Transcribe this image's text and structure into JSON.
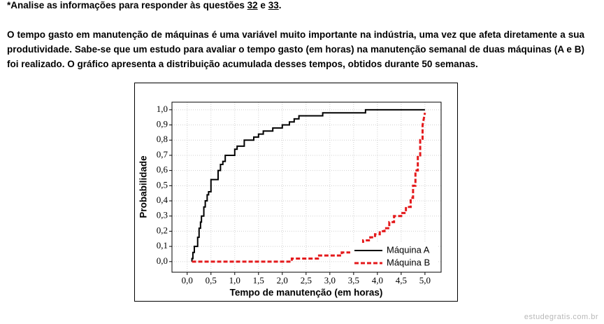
{
  "header": {
    "prefix": "*Analise as informações para responder às questões ",
    "first_question": "32",
    "joiner": " e ",
    "second_question": "33",
    "suffix": "."
  },
  "paragraph": "O tempo gasto em manutenção de máquinas é uma variável muito importante na indústria, uma vez que afeta diretamente a sua produtividade. Sabe-se que um estudo para avaliar o tempo gasto (em horas) na manutenção semanal de duas máquinas (A e B) foi realizado. O gráfico apresenta a distribuição acumulada desses tempos, obtidos durante 50 semanas.",
  "chart_data": {
    "type": "line",
    "x_label": "Tempo de manutenção (em horas)",
    "y_label": "Probabilidade",
    "xlim": [
      -0.32,
      5.34
    ],
    "ylim": [
      -0.07,
      1.05
    ],
    "xticks": [
      {
        "value": 0,
        "label": "0,0"
      },
      {
        "value": 0.5,
        "label": "0,5"
      },
      {
        "value": 1,
        "label": "1,0"
      },
      {
        "value": 1.5,
        "label": "1,5"
      },
      {
        "value": 2,
        "label": "2,0"
      },
      {
        "value": 2.5,
        "label": "2,5"
      },
      {
        "value": 3,
        "label": "3,0"
      },
      {
        "value": 3.5,
        "label": "3,5"
      },
      {
        "value": 4,
        "label": "4,0"
      },
      {
        "value": 4.5,
        "label": "4,5"
      },
      {
        "value": 5,
        "label": "5,0"
      }
    ],
    "yticks": [
      {
        "value": 0,
        "label": "0,0"
      },
      {
        "value": 0.1,
        "label": "0,1"
      },
      {
        "value": 0.2,
        "label": "0,2"
      },
      {
        "value": 0.3,
        "label": "0,3"
      },
      {
        "value": 0.4,
        "label": "0,4"
      },
      {
        "value": 0.5,
        "label": "0,5"
      },
      {
        "value": 0.6,
        "label": "0,6"
      },
      {
        "value": 0.7,
        "label": "0,7"
      },
      {
        "value": 0.8,
        "label": "0,8"
      },
      {
        "value": 0.9,
        "label": "0,9"
      },
      {
        "value": 1,
        "label": "1,0"
      }
    ],
    "grid": true,
    "legend": "lower right",
    "series": [
      {
        "name": "Máquina A",
        "color": "#000000",
        "style": "solid",
        "x": [
          0.1,
          0.1,
          0.12,
          0.12,
          0.15,
          0.15,
          0.22,
          0.22,
          0.25,
          0.25,
          0.28,
          0.28,
          0.3,
          0.3,
          0.35,
          0.35,
          0.38,
          0.38,
          0.42,
          0.42,
          0.45,
          0.45,
          0.5,
          0.5,
          0.65,
          0.65,
          0.7,
          0.7,
          0.75,
          0.75,
          0.8,
          0.8,
          1.0,
          1.0,
          1.05,
          1.05,
          1.2,
          1.2,
          1.4,
          1.4,
          1.5,
          1.5,
          1.6,
          1.6,
          1.8,
          1.8,
          2.0,
          2.0,
          2.15,
          2.15,
          2.25,
          2.25,
          2.35,
          2.35,
          2.85,
          2.85,
          3.75,
          3.75,
          5.0
        ],
        "values": [
          0,
          0.02,
          0.02,
          0.06,
          0.06,
          0.1,
          0.1,
          0.16,
          0.16,
          0.22,
          0.22,
          0.26,
          0.26,
          0.3,
          0.3,
          0.36,
          0.36,
          0.4,
          0.4,
          0.44,
          0.44,
          0.46,
          0.46,
          0.54,
          0.54,
          0.6,
          0.6,
          0.64,
          0.64,
          0.66,
          0.66,
          0.7,
          0.7,
          0.74,
          0.74,
          0.76,
          0.76,
          0.8,
          0.8,
          0.82,
          0.82,
          0.84,
          0.84,
          0.86,
          0.86,
          0.88,
          0.88,
          0.9,
          0.9,
          0.92,
          0.92,
          0.94,
          0.94,
          0.96,
          0.96,
          0.98,
          0.98,
          1.0,
          1.0
        ]
      },
      {
        "name": "Máquina B",
        "color": "#e41a1c",
        "style": "dashed",
        "x": [
          0.1,
          2.2,
          2.2,
          2.75,
          2.75,
          3.25,
          3.25,
          3.5,
          3.5,
          3.6,
          3.6,
          3.7,
          3.7,
          3.85,
          3.85,
          3.95,
          3.95,
          4.05,
          4.05,
          4.15,
          4.15,
          4.25,
          4.25,
          4.35,
          4.35,
          4.5,
          4.5,
          4.6,
          4.6,
          4.7,
          4.7,
          4.75,
          4.75,
          4.8,
          4.8,
          4.85,
          4.85,
          4.9,
          4.9,
          4.95,
          4.95,
          5.0
        ],
        "values": [
          0,
          0,
          0.02,
          0.02,
          0.04,
          0.04,
          0.06,
          0.06,
          0.08,
          0.08,
          0.1,
          0.1,
          0.14,
          0.14,
          0.16,
          0.16,
          0.18,
          0.18,
          0.2,
          0.2,
          0.22,
          0.22,
          0.26,
          0.26,
          0.3,
          0.3,
          0.32,
          0.32,
          0.36,
          0.36,
          0.42,
          0.42,
          0.5,
          0.5,
          0.6,
          0.6,
          0.7,
          0.7,
          0.8,
          0.8,
          0.9,
          0.98
        ]
      }
    ]
  },
  "footer": {
    "watermark": "estudegratis.com.br"
  }
}
